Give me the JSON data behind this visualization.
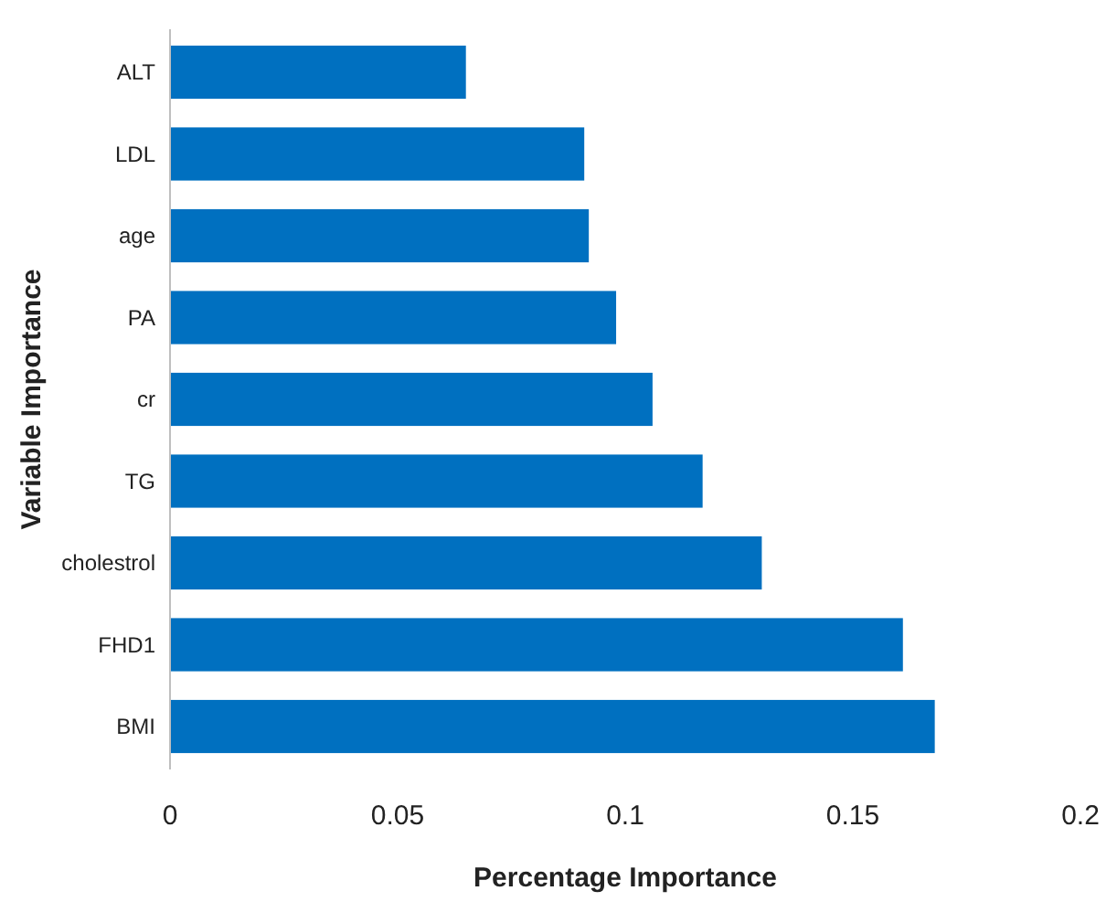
{
  "chart_data": {
    "type": "bar",
    "orientation": "horizontal",
    "xlabel": "Percentage Importance",
    "ylabel": "Variable Importance",
    "categories": [
      "ALT",
      "LDL",
      "age",
      "PA",
      "cr",
      "TG",
      "cholestrol",
      "FHD1",
      "BMI"
    ],
    "values": [
      0.065,
      0.091,
      0.092,
      0.098,
      0.106,
      0.117,
      0.13,
      0.161,
      0.168
    ],
    "color": "#0070c0",
    "xlim": [
      0,
      0.2
    ],
    "xticks": [
      0,
      0.05,
      0.1,
      0.15,
      0.2
    ],
    "grid": false
  }
}
